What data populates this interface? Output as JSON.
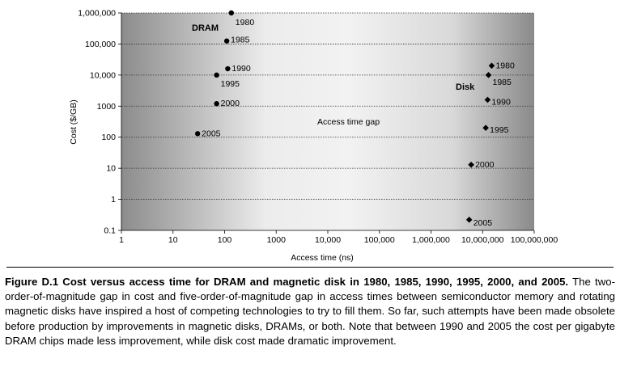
{
  "chart_data": {
    "type": "scatter",
    "xlabel": "Access time (ns)",
    "ylabel": "Cost ($/GB)",
    "xscale": "log",
    "yscale": "log",
    "xlim": [
      1,
      100000000
    ],
    "ylim": [
      0.1,
      1000000
    ],
    "grid": "horizontal-dotted",
    "x_ticks": [
      {
        "v": 1,
        "label": "1"
      },
      {
        "v": 10,
        "label": "10"
      },
      {
        "v": 100,
        "label": "100"
      },
      {
        "v": 1000,
        "label": "1000"
      },
      {
        "v": 10000,
        "label": "10,000"
      },
      {
        "v": 100000,
        "label": "100,000"
      },
      {
        "v": 1000000,
        "label": "1,000,000"
      },
      {
        "v": 10000000,
        "label": "10,000,000"
      },
      {
        "v": 100000000,
        "label": "100,000,000"
      }
    ],
    "y_ticks": [
      {
        "v": 0.1,
        "label": "0.1"
      },
      {
        "v": 1,
        "label": "1"
      },
      {
        "v": 10,
        "label": "10"
      },
      {
        "v": 100,
        "label": "100"
      },
      {
        "v": 1000,
        "label": "1000"
      },
      {
        "v": 10000,
        "label": "10,000"
      },
      {
        "v": 100000,
        "label": "100,000"
      },
      {
        "v": 1000000,
        "label": "1,000,000"
      }
    ],
    "annotations": {
      "dram": "DRAM",
      "disk": "Disk",
      "gap": "Access time gap"
    },
    "series": [
      {
        "name": "DRAM",
        "marker": "circle",
        "points": [
          {
            "x": 135,
            "y": 1000000,
            "label": "1980"
          },
          {
            "x": 110,
            "y": 125000,
            "label": "1985"
          },
          {
            "x": 115,
            "y": 16000,
            "label": "1990"
          },
          {
            "x": 70,
            "y": 10000,
            "label": "1995"
          },
          {
            "x": 70,
            "y": 1200,
            "label": "2000"
          },
          {
            "x": 30,
            "y": 130,
            "label": "2005"
          }
        ]
      },
      {
        "name": "Disk",
        "marker": "diamond",
        "points": [
          {
            "x": 15000000,
            "y": 20000,
            "label": "1980"
          },
          {
            "x": 13000000,
            "y": 10000,
            "label": "1985"
          },
          {
            "x": 12500000,
            "y": 1600,
            "label": "1990"
          },
          {
            "x": 11500000,
            "y": 200,
            "label": "1995"
          },
          {
            "x": 6000000,
            "y": 13,
            "label": "2000"
          },
          {
            "x": 5500000,
            "y": 0.22,
            "label": "2005"
          }
        ]
      }
    ]
  },
  "caption": {
    "lead": "Figure D.1  Cost versus access time for DRAM and magnetic disk in 1980, 1985, 1990, 1995, 2000, and 2005.",
    "body": "The two-order-of-magnitude gap in cost and five-order-of-magnitude gap in access times between semiconductor memory and rotating magnetic disks have inspired a host of competing technologies to try to fill them. So far, such attempts have been made obsolete before production by improvements in magnetic disks, DRAMs, or both. Note that between 1990 and 2005 the cost per gigabyte DRAM chips made less improvement, while disk cost made dramatic improvement."
  }
}
